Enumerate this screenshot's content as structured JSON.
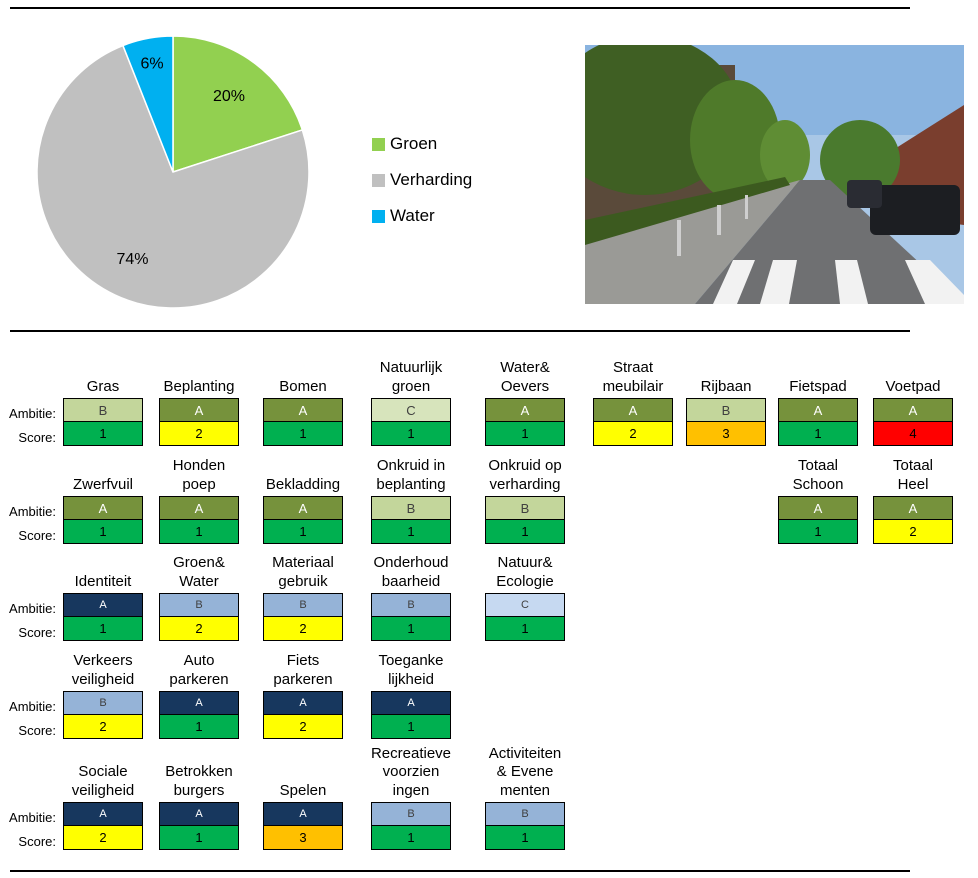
{
  "chart_data": {
    "type": "pie",
    "slices": [
      {
        "label": "Groen",
        "value": 20,
        "value_label": "20%",
        "color": "#92d050"
      },
      {
        "label": "Verharding",
        "value": 74,
        "value_label": "74%",
        "color": "#c0c0c0"
      },
      {
        "label": "Water",
        "value": 6,
        "value_label": "6%",
        "color": "#00b0f0"
      }
    ],
    "legend_position": "right"
  },
  "photo": {
    "description_icon": "street-photo"
  },
  "labels": {
    "ambitie": "Ambitie:",
    "score": "Score:"
  },
  "colors": {
    "ambitie": {
      "A": "#76923c",
      "B": "#c3d69b",
      "C": "#d7e4bc"
    },
    "ambitie_blue": {
      "A": "#17375e",
      "B": "#95b3d7",
      "C": "#c6d9f1"
    },
    "score": {
      "1": "#00b050",
      "2": "#ffff00",
      "3": "#ffc000",
      "4": "#ff0000"
    }
  },
  "rows": [
    {
      "palette": "green",
      "items": [
        {
          "title": "Gras",
          "ambitie": "B",
          "score": "1"
        },
        {
          "title": "Beplanting",
          "ambitie": "A",
          "score": "2"
        },
        {
          "title": "Bomen",
          "ambitie": "A",
          "score": "1"
        },
        {
          "title": "Natuurlijk\ngroen",
          "ambitie": "C",
          "score": "1"
        },
        {
          "title": "Water&\nOevers",
          "ambitie": "A",
          "score": "1"
        },
        {
          "title": "Straat\nmeubilair",
          "ambitie": "A",
          "score": "2"
        },
        {
          "title": "Rijbaan",
          "ambitie": "B",
          "score": "3"
        },
        {
          "title": "Fietspad",
          "ambitie": "A",
          "score": "1"
        },
        {
          "title": "Voetpad",
          "ambitie": "A",
          "score": "4"
        }
      ]
    },
    {
      "palette": "green",
      "items": [
        {
          "title": "Zwerfvuil",
          "ambitie": "A",
          "score": "1"
        },
        {
          "title": "Honden\npoep",
          "ambitie": "A",
          "score": "1"
        },
        {
          "title": "Bekladding",
          "ambitie": "A",
          "score": "1"
        },
        {
          "title": "Onkruid in\nbeplanting",
          "ambitie": "B",
          "score": "1"
        },
        {
          "title": "Onkruid op\nverharding",
          "ambitie": "B",
          "score": "1"
        },
        {
          "title": "Totaal\nSchoon",
          "ambitie": "A",
          "score": "1",
          "col": 7
        },
        {
          "title": "Totaal\nHeel",
          "ambitie": "A",
          "score": "2",
          "col": 8
        }
      ]
    },
    {
      "palette": "blue",
      "items": [
        {
          "title": "Identiteit",
          "ambitie": "A",
          "score": "1"
        },
        {
          "title": "Groen&\nWater",
          "ambitie": "B",
          "score": "2"
        },
        {
          "title": "Materiaal\ngebruik",
          "ambitie": "B",
          "score": "2"
        },
        {
          "title": "Onderhoud\nbaarheid",
          "ambitie": "B",
          "score": "1"
        },
        {
          "title": "Natuur&\nEcologie",
          "ambitie": "C",
          "score": "1"
        }
      ]
    },
    {
      "palette": "blue",
      "items": [
        {
          "title": "Verkeers\nveiligheid",
          "ambitie": "B",
          "score": "2"
        },
        {
          "title": "Auto\nparkeren",
          "ambitie": "A",
          "score": "1"
        },
        {
          "title": "Fiets\nparkeren",
          "ambitie": "A",
          "score": "2"
        },
        {
          "title": "Toeganke\nlijkheid",
          "ambitie": "A",
          "score": "1"
        }
      ]
    },
    {
      "palette": "blue",
      "items": [
        {
          "title": "Sociale\nveiligheid",
          "ambitie": "A",
          "score": "2"
        },
        {
          "title": "Betrokken\nburgers",
          "ambitie": "A",
          "score": "1"
        },
        {
          "title": "Spelen",
          "ambitie": "A",
          "score": "3"
        },
        {
          "title": "Recreatieve\nvoorzien\ningen",
          "ambitie": "B",
          "score": "1"
        },
        {
          "title": "Activiteiten\n& Evene\nmenten",
          "ambitie": "B",
          "score": "1"
        }
      ]
    }
  ]
}
